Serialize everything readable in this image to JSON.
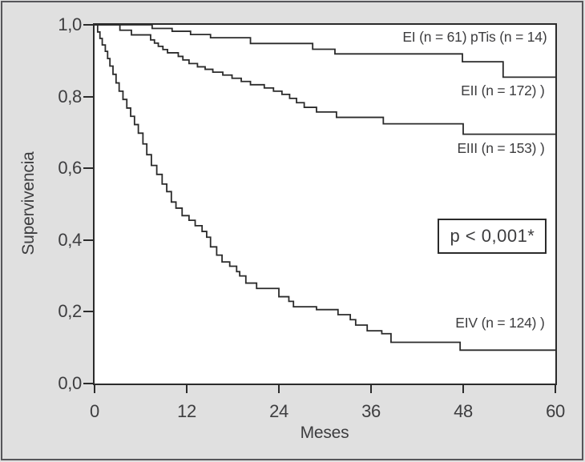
{
  "figure": {
    "bg_color": "#e0e0e0",
    "frame_color": "#56565a",
    "plot_bg": "#ffffff",
    "line_color": "#2b2b2b",
    "text_color": "#3d3d3f"
  },
  "chart_data": {
    "type": "line",
    "variant": "kaplan-meier-step-curves",
    "title": "",
    "xlabel": "Meses",
    "ylabel": "Supervivencia",
    "xlim": [
      0,
      60
    ],
    "ylim": [
      0.0,
      1.0
    ],
    "grid": false,
    "legend_position": "labels-inside-plot-right-aligned",
    "x_ticks": [
      {
        "value": 0,
        "label": "0"
      },
      {
        "value": 12,
        "label": "12"
      },
      {
        "value": 24,
        "label": "24"
      },
      {
        "value": 36,
        "label": "36"
      },
      {
        "value": 48,
        "label": "48"
      },
      {
        "value": 60,
        "label": "60"
      }
    ],
    "y_ticks": [
      {
        "value": 0.0,
        "label": "0,0"
      },
      {
        "value": 0.2,
        "label": "0,2"
      },
      {
        "value": 0.4,
        "label": "0,4"
      },
      {
        "value": 0.6,
        "label": "0,6"
      },
      {
        "value": 0.8,
        "label": "0,8"
      },
      {
        "value": 1.0,
        "label": "1,0"
      }
    ],
    "annotation_box": {
      "text": "p < 0,001*",
      "x_month": 51.8,
      "y_survival": 0.41
    },
    "curve_labels": [
      {
        "text": "EI (n = 61) pTis (n = 14)",
        "anchor": "right",
        "x_month": 58.9,
        "y_survival": 0.966
      },
      {
        "text": "EII (n = 172) )",
        "anchor": "right",
        "x_month": 58.6,
        "y_survival": 0.816
      },
      {
        "text": "EIII (n = 153) )",
        "anchor": "right",
        "x_month": 58.6,
        "y_survival": 0.657
      },
      {
        "text": "EIV (n = 124) )",
        "anchor": "right",
        "x_month": 58.6,
        "y_survival": 0.17
      }
    ],
    "series": [
      {
        "name": "EI-pTis",
        "start": [
          0,
          1.0
        ],
        "end_month": 60,
        "steps": [
          [
            7.5,
            0.99
          ],
          [
            10.1,
            0.982
          ],
          [
            12.5,
            0.973
          ],
          [
            15.1,
            0.964
          ],
          [
            20.3,
            0.948
          ],
          [
            28.4,
            0.932
          ],
          [
            31.3,
            0.919
          ],
          [
            47.9,
            0.897
          ],
          [
            53.2,
            0.854
          ]
        ]
      },
      {
        "name": "EII-EIII",
        "start": [
          0,
          1.0
        ],
        "end_month": 60,
        "steps": [
          [
            3.3,
            0.985
          ],
          [
            4.8,
            0.972
          ],
          [
            7.3,
            0.958
          ],
          [
            7.8,
            0.949
          ],
          [
            8.3,
            0.94
          ],
          [
            8.9,
            0.931
          ],
          [
            9.5,
            0.922
          ],
          [
            10.9,
            0.912
          ],
          [
            11.5,
            0.902
          ],
          [
            12.3,
            0.892
          ],
          [
            13.4,
            0.883
          ],
          [
            14.4,
            0.876
          ],
          [
            15.4,
            0.868
          ],
          [
            16.7,
            0.86
          ],
          [
            17.9,
            0.851
          ],
          [
            19.1,
            0.842
          ],
          [
            20.3,
            0.833
          ],
          [
            22.1,
            0.824
          ],
          [
            23.3,
            0.815
          ],
          [
            24.4,
            0.806
          ],
          [
            25.4,
            0.795
          ],
          [
            26.3,
            0.783
          ],
          [
            27.3,
            0.77
          ],
          [
            28.9,
            0.757
          ],
          [
            31.5,
            0.742
          ],
          [
            37.6,
            0.724
          ],
          [
            48.0,
            0.695
          ]
        ]
      },
      {
        "name": "EIV",
        "start": [
          0,
          1.0
        ],
        "end_month": 60,
        "steps": [
          [
            0.4,
            0.98
          ],
          [
            0.7,
            0.962
          ],
          [
            1.0,
            0.944
          ],
          [
            1.4,
            0.926
          ],
          [
            1.7,
            0.906
          ],
          [
            2.0,
            0.885
          ],
          [
            2.4,
            0.862
          ],
          [
            2.8,
            0.838
          ],
          [
            3.2,
            0.815
          ],
          [
            3.7,
            0.792
          ],
          [
            4.2,
            0.768
          ],
          [
            4.7,
            0.745
          ],
          [
            5.2,
            0.722
          ],
          [
            5.7,
            0.698
          ],
          [
            6.3,
            0.668
          ],
          [
            6.8,
            0.638
          ],
          [
            7.4,
            0.608
          ],
          [
            8.1,
            0.583
          ],
          [
            8.8,
            0.556
          ],
          [
            9.4,
            0.535
          ],
          [
            10.0,
            0.506
          ],
          [
            10.6,
            0.489
          ],
          [
            11.4,
            0.468
          ],
          [
            12.3,
            0.455
          ],
          [
            13.1,
            0.44
          ],
          [
            14.0,
            0.424
          ],
          [
            14.6,
            0.408
          ],
          [
            15.1,
            0.381
          ],
          [
            15.9,
            0.358
          ],
          [
            16.6,
            0.339
          ],
          [
            17.6,
            0.327
          ],
          [
            18.5,
            0.312
          ],
          [
            18.9,
            0.3
          ],
          [
            19.7,
            0.28
          ],
          [
            21.1,
            0.265
          ],
          [
            24.0,
            0.242
          ],
          [
            25.3,
            0.229
          ],
          [
            25.9,
            0.214
          ],
          [
            28.9,
            0.206
          ],
          [
            31.7,
            0.192
          ],
          [
            33.3,
            0.178
          ],
          [
            34.0,
            0.163
          ],
          [
            35.5,
            0.147
          ],
          [
            37.4,
            0.139
          ],
          [
            38.6,
            0.115
          ],
          [
            47.6,
            0.093
          ]
        ]
      }
    ]
  }
}
